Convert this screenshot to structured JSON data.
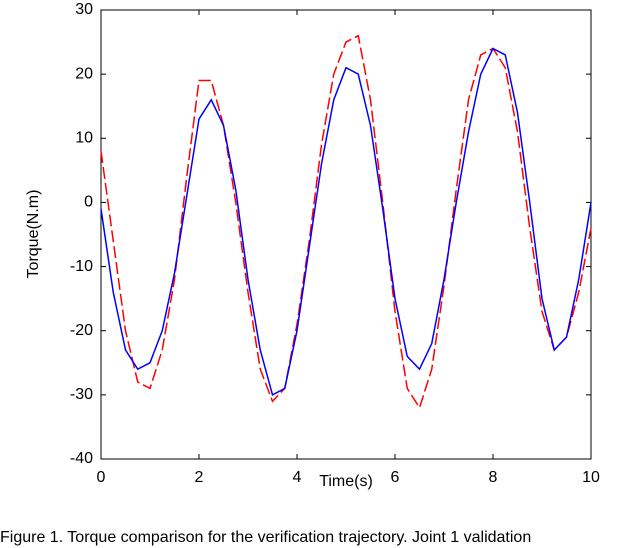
{
  "chart_data": {
    "type": "line",
    "xlabel": "Time(s)",
    "ylabel": "Torque(N.m)",
    "caption": "Figure 1. Torque comparison for the verification trajectory. Joint 1 validation",
    "x": [
      0,
      0.25,
      0.5,
      0.75,
      1,
      1.25,
      1.5,
      1.75,
      2,
      2.25,
      2.5,
      2.75,
      3,
      3.25,
      3.5,
      3.75,
      4,
      4.25,
      4.5,
      4.75,
      5,
      5.25,
      5.5,
      5.75,
      6,
      6.25,
      6.5,
      6.75,
      7,
      7.25,
      7.5,
      7.75,
      8,
      8.25,
      8.5,
      8.75,
      9,
      9.25,
      9.5,
      9.75,
      10
    ],
    "series": [
      {
        "color": "#ff0000",
        "dash": true,
        "values": [
          8,
          -6,
          -20,
          -28,
          -29,
          -23,
          -12,
          4,
          19,
          19,
          12,
          0,
          -14,
          -26,
          -31,
          -29,
          -19,
          -6,
          9,
          20,
          25,
          26,
          16,
          0,
          -17,
          -29,
          -32,
          -26,
          -13,
          2,
          16,
          23,
          24,
          21,
          11,
          -4,
          -17,
          -23,
          -21,
          -14,
          -4
        ]
      },
      {
        "color": "#0000ff",
        "dash": false,
        "values": [
          -1,
          -14,
          -23,
          -26,
          -25,
          -20,
          -11,
          1,
          13,
          16,
          12,
          2,
          -12,
          -23,
          -30,
          -29,
          -20,
          -7,
          6,
          16,
          21,
          20,
          12,
          -1,
          -15,
          -24,
          -26,
          -22,
          -12,
          0,
          11,
          20,
          24,
          23,
          14,
          0,
          -15,
          -23,
          -21,
          -12,
          0
        ]
      }
    ],
    "xlim": [
      0,
      10
    ],
    "xticks": [
      0,
      2,
      4,
      6,
      8,
      10
    ],
    "ylim": [
      -40,
      30
    ],
    "yticks": [
      -40,
      -30,
      -20,
      -10,
      0,
      10,
      20,
      30
    ]
  }
}
